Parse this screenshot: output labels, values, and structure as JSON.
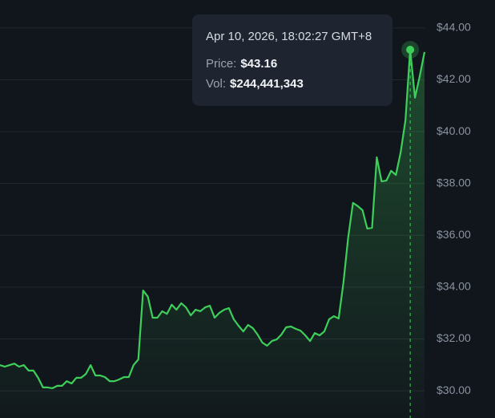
{
  "chart_data": {
    "type": "line",
    "values": [
      30.99,
      30.93,
      30.99,
      31.05,
      30.93,
      30.99,
      30.78,
      30.78,
      30.5,
      30.13,
      30.13,
      30.1,
      30.19,
      30.19,
      30.37,
      30.28,
      30.5,
      30.5,
      30.65,
      30.99,
      30.59,
      30.59,
      30.53,
      30.37,
      30.37,
      30.44,
      30.53,
      30.53,
      30.99,
      31.21,
      33.87,
      33.63,
      32.82,
      32.82,
      33.07,
      32.97,
      33.32,
      33.13,
      33.38,
      33.22,
      32.91,
      33.13,
      33.07,
      33.22,
      33.28,
      32.82,
      33.01,
      33.13,
      33.19,
      32.76,
      32.51,
      32.29,
      32.54,
      32.42,
      32.17,
      31.86,
      31.74,
      31.92,
      31.98,
      32.17,
      32.45,
      32.48,
      32.39,
      32.32,
      32.14,
      31.92,
      32.23,
      32.14,
      32.29,
      32.76,
      32.88,
      32.79,
      34.18,
      35.92,
      37.25,
      37.13,
      36.97,
      36.26,
      36.29,
      39.01,
      38.08,
      38.11,
      38.49,
      38.33,
      39.2,
      40.44,
      43.16,
      41.31,
      42.14,
      43.07
    ],
    "color": "#3ecf5a",
    "ylim": [
      28.95,
      45.08
    ],
    "yticks": [
      {
        "value": 30,
        "label": "$30.00"
      },
      {
        "value": 32,
        "label": "$32.00"
      },
      {
        "value": 34,
        "label": "$34.00"
      },
      {
        "value": 36,
        "label": "$36.00"
      },
      {
        "value": 38,
        "label": "$38.00"
      },
      {
        "value": 40,
        "label": "$40.00"
      },
      {
        "value": 42,
        "label": "$42.00"
      },
      {
        "value": 44,
        "label": "$44.00"
      }
    ],
    "grid": true,
    "tooltip": {
      "index": 86,
      "time": "Apr 10, 2026, 18:02:27 GMT+8",
      "rows": [
        {
          "name": "Price:",
          "value": 43.16,
          "value_label": "$43.16"
        },
        {
          "name": "Vol:",
          "value": 244441343,
          "value_label": "$244,441,343"
        }
      ]
    }
  }
}
